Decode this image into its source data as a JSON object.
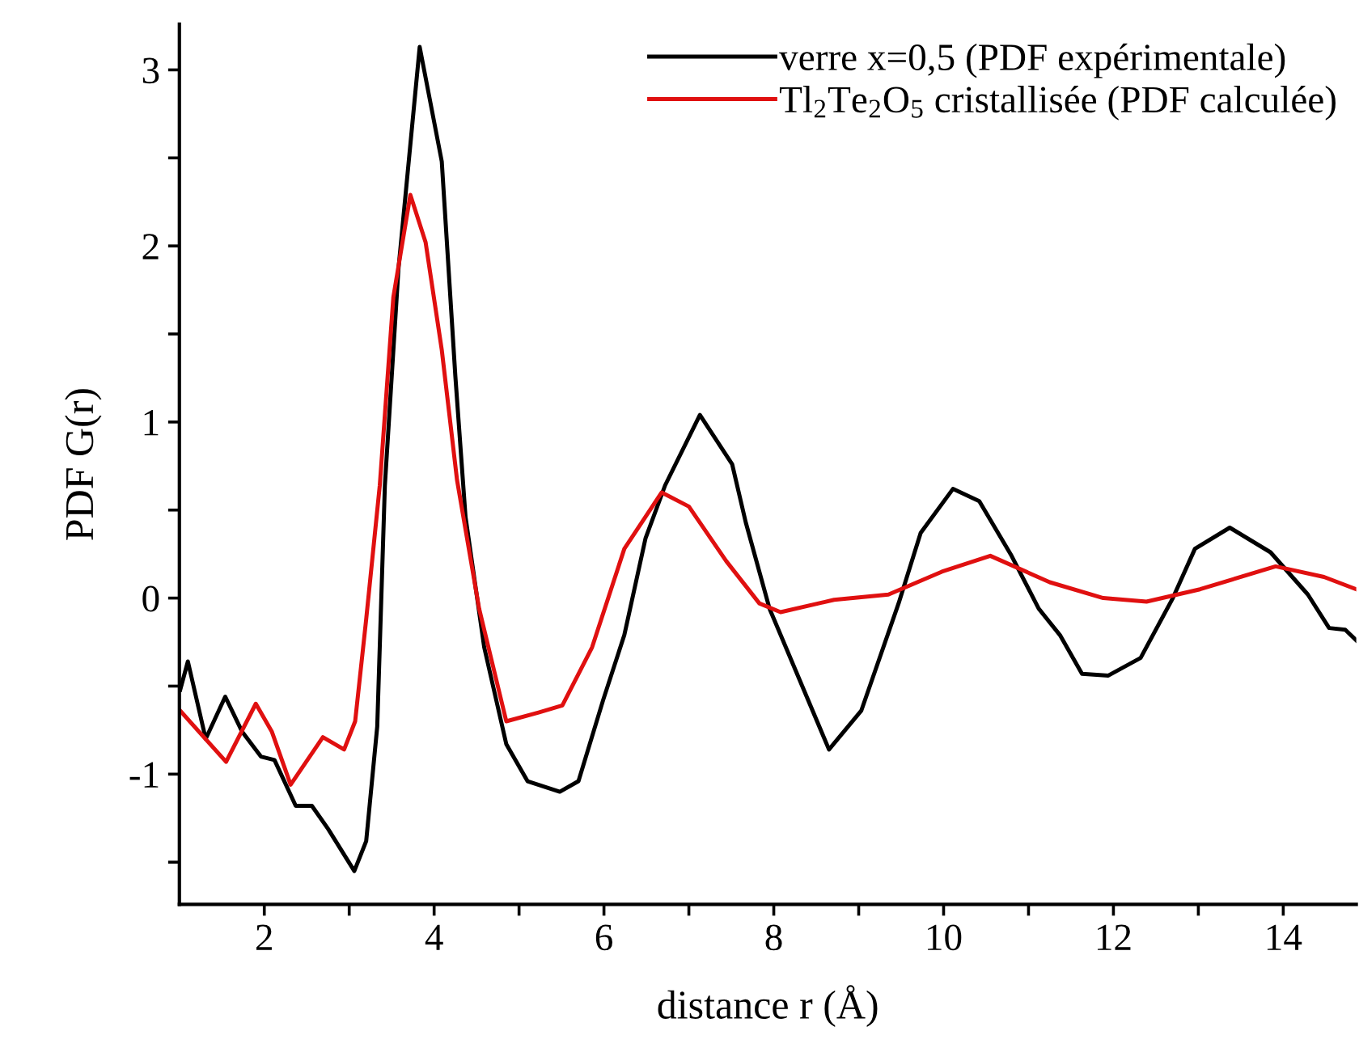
{
  "chart_data": {
    "type": "line",
    "xlabel": "distance r (Å)",
    "ylabel": "PDF G(r)",
    "xlim": [
      1,
      14.86
    ],
    "ylim": [
      -1.74,
      3.26
    ],
    "xticks": [
      2,
      {
        "value": 3,
        "label": null
      },
      4,
      {
        "value": 5,
        "label": null
      },
      6,
      {
        "value": 7,
        "label": null
      },
      8,
      {
        "value": 9,
        "label": null
      },
      10,
      {
        "value": 11,
        "label": null
      },
      12,
      {
        "value": 13,
        "label": null
      },
      14
    ],
    "yticks": [
      {
        "value": -1.5,
        "label": null
      },
      -1,
      {
        "value": -0.5,
        "label": null
      },
      0,
      {
        "value": 0.5,
        "label": null
      },
      1,
      {
        "value": 1.5,
        "label": null
      },
      2,
      {
        "value": 2.5,
        "label": null
      },
      3
    ],
    "grid": false,
    "legend": "top right",
    "marker": "none",
    "line_style": "solid",
    "series": [
      {
        "name": "verre x=0,5 (PDF expérimentale)",
        "color": "#000000",
        "x": [
          1.01,
          1.1,
          1.31,
          1.54,
          1.74,
          1.96,
          2.12,
          2.37,
          2.56,
          2.75,
          3.06,
          3.2,
          3.33,
          3.42,
          3.58,
          3.83,
          4.09,
          4.25,
          4.37,
          4.59,
          4.85,
          5.1,
          5.48,
          5.7,
          5.99,
          6.24,
          6.49,
          6.72,
          7.13,
          7.51,
          7.67,
          7.95,
          8.65,
          9.03,
          9.47,
          9.73,
          10.11,
          10.42,
          10.8,
          11.12,
          11.37,
          11.63,
          11.94,
          12.32,
          12.7,
          12.96,
          13.37,
          13.85,
          14.29,
          14.54,
          14.73,
          14.86
        ],
        "values": [
          -0.52,
          -0.36,
          -0.8,
          -0.56,
          -0.76,
          -0.9,
          -0.92,
          -1.18,
          -1.18,
          -1.31,
          -1.55,
          -1.38,
          -0.73,
          0.64,
          1.87,
          3.13,
          2.48,
          1.26,
          0.46,
          -0.28,
          -0.83,
          -1.04,
          -1.1,
          -1.04,
          -0.58,
          -0.21,
          0.34,
          0.64,
          1.04,
          0.76,
          0.43,
          -0.06,
          -0.86,
          -0.64,
          -0.03,
          0.37,
          0.62,
          0.55,
          0.24,
          -0.06,
          -0.21,
          -0.43,
          -0.44,
          -0.34,
          0.0,
          0.28,
          0.4,
          0.26,
          0.02,
          -0.17,
          -0.18,
          -0.24
        ]
      },
      {
        "name": "Tl$_{2}$Te$_{2}$O$_{5}$ cristallisée (PDF calculée)",
        "color": "#e01010",
        "x": [
          1.01,
          1.55,
          1.9,
          2.09,
          2.31,
          2.69,
          2.94,
          3.07,
          3.2,
          3.36,
          3.52,
          3.72,
          3.9,
          4.09,
          4.27,
          4.53,
          4.85,
          5.23,
          5.51,
          5.86,
          6.24,
          6.68,
          7.0,
          7.44,
          7.83,
          8.08,
          8.71,
          9.35,
          9.98,
          10.55,
          11.25,
          11.88,
          12.39,
          13.02,
          13.91,
          14.48,
          14.86
        ],
        "values": [
          -0.64,
          -0.93,
          -0.6,
          -0.76,
          -1.06,
          -0.79,
          -0.86,
          -0.7,
          -0.12,
          0.64,
          1.71,
          2.29,
          2.02,
          1.41,
          0.67,
          -0.06,
          -0.7,
          -0.65,
          -0.61,
          -0.28,
          0.28,
          0.6,
          0.52,
          0.21,
          -0.03,
          -0.08,
          -0.01,
          0.02,
          0.15,
          0.24,
          0.09,
          0.0,
          -0.02,
          0.05,
          0.18,
          0.12,
          0.05
        ]
      }
    ]
  }
}
